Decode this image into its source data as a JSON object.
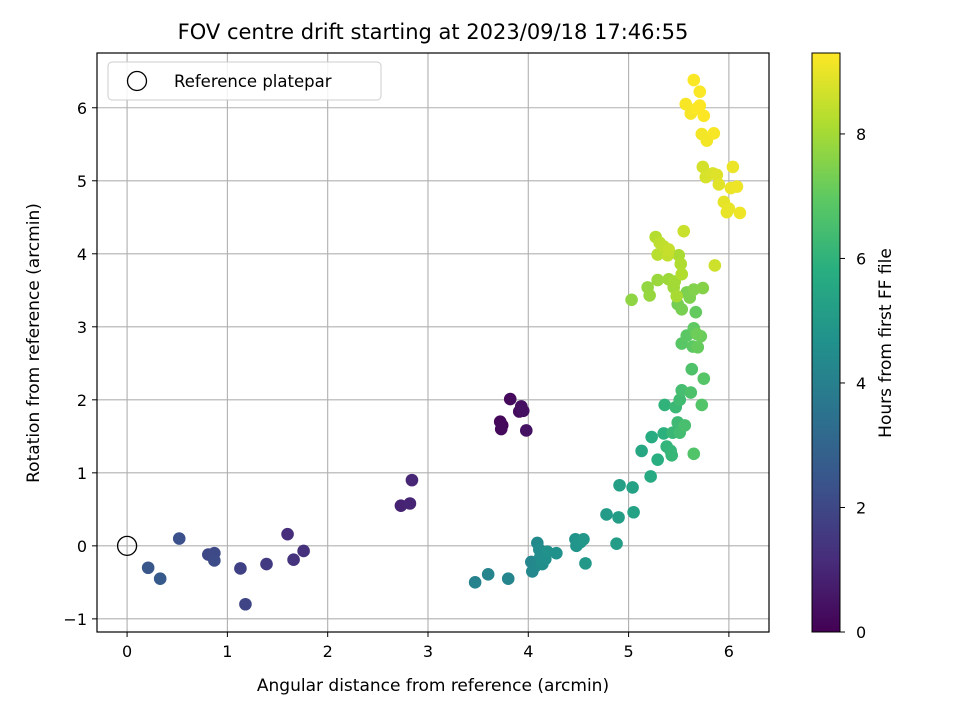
{
  "chart_data": {
    "type": "scatter",
    "title": "FOV centre drift starting at 2023/09/18 17:46:55",
    "xlabel": "Angular distance from reference (arcmin)",
    "ylabel": "Rotation from reference (arcmin)",
    "xlim": [
      -0.3,
      6.4
    ],
    "ylim": [
      -1.18,
      6.75
    ],
    "xticks": [
      0,
      1,
      2,
      3,
      4,
      5,
      6
    ],
    "yticks": [
      -1,
      0,
      1,
      2,
      3,
      4,
      5,
      6
    ],
    "grid": true,
    "legend": {
      "position": "top-left",
      "entries": [
        "Reference platepar"
      ]
    },
    "reference_point": {
      "x": 0,
      "y": 0,
      "marker": "open-circle",
      "label": "Reference platepar"
    },
    "colorbar": {
      "label": "Hours from first FF file",
      "colormap": "viridis",
      "range": [
        0,
        9.3
      ],
      "ticks": [
        0,
        2,
        4,
        6,
        8
      ]
    },
    "points": [
      {
        "x": 3.74,
        "y": 1.65,
        "t": 0.1
      },
      {
        "x": 3.72,
        "y": 1.7,
        "t": 0.15
      },
      {
        "x": 3.73,
        "y": 1.6,
        "t": 0.2
      },
      {
        "x": 3.82,
        "y": 2.01,
        "t": 0.25
      },
      {
        "x": 3.91,
        "y": 1.84,
        "t": 0.3
      },
      {
        "x": 3.93,
        "y": 1.91,
        "t": 0.35
      },
      {
        "x": 3.95,
        "y": 1.85,
        "t": 0.4
      },
      {
        "x": 3.98,
        "y": 1.58,
        "t": 0.45
      },
      {
        "x": 2.73,
        "y": 0.55,
        "t": 0.9
      },
      {
        "x": 2.82,
        "y": 0.58,
        "t": 0.95
      },
      {
        "x": 2.84,
        "y": 0.9,
        "t": 1.0
      },
      {
        "x": 1.6,
        "y": 0.16,
        "t": 1.2
      },
      {
        "x": 1.76,
        "y": -0.07,
        "t": 1.3
      },
      {
        "x": 1.66,
        "y": -0.19,
        "t": 1.35
      },
      {
        "x": 1.39,
        "y": -0.25,
        "t": 1.6
      },
      {
        "x": 1.13,
        "y": -0.31,
        "t": 1.8
      },
      {
        "x": 1.18,
        "y": -0.8,
        "t": 1.9
      },
      {
        "x": 0.81,
        "y": -0.12,
        "t": 2.0
      },
      {
        "x": 0.87,
        "y": -0.1,
        "t": 2.05
      },
      {
        "x": 0.87,
        "y": -0.2,
        "t": 2.1
      },
      {
        "x": 0.52,
        "y": 0.1,
        "t": 2.3
      },
      {
        "x": 0.21,
        "y": -0.3,
        "t": 2.5
      },
      {
        "x": 0.33,
        "y": -0.45,
        "t": 2.6
      },
      {
        "x": 3.47,
        "y": -0.5,
        "t": 4.1
      },
      {
        "x": 3.6,
        "y": -0.39,
        "t": 4.15
      },
      {
        "x": 3.8,
        "y": -0.45,
        "t": 4.2
      },
      {
        "x": 4.03,
        "y": -0.22,
        "t": 4.25
      },
      {
        "x": 4.04,
        "y": -0.35,
        "t": 4.3
      },
      {
        "x": 4.07,
        "y": -0.28,
        "t": 4.35
      },
      {
        "x": 4.09,
        "y": 0.04,
        "t": 4.4
      },
      {
        "x": 4.11,
        "y": -0.05,
        "t": 4.45
      },
      {
        "x": 4.12,
        "y": -0.15,
        "t": 4.5
      },
      {
        "x": 4.14,
        "y": -0.25,
        "t": 4.55
      },
      {
        "x": 4.17,
        "y": -0.18,
        "t": 4.6
      },
      {
        "x": 4.19,
        "y": -0.08,
        "t": 4.65
      },
      {
        "x": 4.28,
        "y": -0.1,
        "t": 4.7
      },
      {
        "x": 4.47,
        "y": 0.09,
        "t": 4.75
      },
      {
        "x": 4.48,
        "y": 0.0,
        "t": 4.8
      },
      {
        "x": 4.52,
        "y": 0.05,
        "t": 4.85
      },
      {
        "x": 4.55,
        "y": 0.09,
        "t": 4.9
      },
      {
        "x": 4.57,
        "y": -0.24,
        "t": 4.95
      },
      {
        "x": 4.78,
        "y": 0.43,
        "t": 5.05
      },
      {
        "x": 4.88,
        "y": 0.03,
        "t": 5.1
      },
      {
        "x": 4.9,
        "y": 0.39,
        "t": 5.15
      },
      {
        "x": 4.91,
        "y": 0.83,
        "t": 5.2
      },
      {
        "x": 5.04,
        "y": 0.8,
        "t": 5.3
      },
      {
        "x": 5.05,
        "y": 0.46,
        "t": 5.35
      },
      {
        "x": 5.13,
        "y": 1.3,
        "t": 5.5
      },
      {
        "x": 5.22,
        "y": 0.95,
        "t": 5.6
      },
      {
        "x": 5.23,
        "y": 1.49,
        "t": 5.7
      },
      {
        "x": 5.29,
        "y": 1.18,
        "t": 5.8
      },
      {
        "x": 5.35,
        "y": 1.54,
        "t": 5.9
      },
      {
        "x": 5.36,
        "y": 1.93,
        "t": 6.0
      },
      {
        "x": 5.38,
        "y": 1.36,
        "t": 6.05
      },
      {
        "x": 5.42,
        "y": 1.3,
        "t": 6.1
      },
      {
        "x": 5.43,
        "y": 1.24,
        "t": 6.15
      },
      {
        "x": 5.44,
        "y": 1.55,
        "t": 6.2
      },
      {
        "x": 5.47,
        "y": 1.9,
        "t": 6.25
      },
      {
        "x": 5.49,
        "y": 1.69,
        "t": 6.3
      },
      {
        "x": 5.51,
        "y": 2.0,
        "t": 6.35
      },
      {
        "x": 5.51,
        "y": 1.55,
        "t": 6.4
      },
      {
        "x": 5.53,
        "y": 2.13,
        "t": 6.45
      },
      {
        "x": 5.56,
        "y": 1.65,
        "t": 6.5
      },
      {
        "x": 5.62,
        "y": 2.1,
        "t": 6.6
      },
      {
        "x": 5.63,
        "y": 2.42,
        "t": 6.65
      },
      {
        "x": 5.65,
        "y": 1.26,
        "t": 6.7
      },
      {
        "x": 5.73,
        "y": 1.93,
        "t": 6.75
      },
      {
        "x": 5.75,
        "y": 2.29,
        "t": 6.8
      },
      {
        "x": 5.53,
        "y": 2.77,
        "t": 6.85
      },
      {
        "x": 5.58,
        "y": 2.88,
        "t": 6.9
      },
      {
        "x": 5.64,
        "y": 2.73,
        "t": 6.95
      },
      {
        "x": 5.65,
        "y": 2.98,
        "t": 7.0
      },
      {
        "x": 5.67,
        "y": 3.2,
        "t": 7.05
      },
      {
        "x": 5.69,
        "y": 2.72,
        "t": 7.1
      },
      {
        "x": 5.72,
        "y": 2.87,
        "t": 7.15
      },
      {
        "x": 5.68,
        "y": 2.9,
        "t": 7.2
      },
      {
        "x": 5.49,
        "y": 3.31,
        "t": 7.3
      },
      {
        "x": 5.53,
        "y": 3.24,
        "t": 7.35
      },
      {
        "x": 5.58,
        "y": 3.47,
        "t": 7.4
      },
      {
        "x": 5.61,
        "y": 3.4,
        "t": 7.45
      },
      {
        "x": 5.65,
        "y": 3.51,
        "t": 7.5
      },
      {
        "x": 5.74,
        "y": 3.53,
        "t": 7.55
      },
      {
        "x": 5.03,
        "y": 3.37,
        "t": 7.7
      },
      {
        "x": 5.19,
        "y": 3.54,
        "t": 7.75
      },
      {
        "x": 5.21,
        "y": 3.43,
        "t": 7.8
      },
      {
        "x": 5.29,
        "y": 3.64,
        "t": 7.85
      },
      {
        "x": 5.4,
        "y": 3.65,
        "t": 7.9
      },
      {
        "x": 5.45,
        "y": 3.54,
        "t": 7.95
      },
      {
        "x": 5.46,
        "y": 3.62,
        "t": 8.0
      },
      {
        "x": 5.48,
        "y": 3.42,
        "t": 8.05
      },
      {
        "x": 5.5,
        "y": 3.98,
        "t": 8.1
      },
      {
        "x": 5.52,
        "y": 3.86,
        "t": 8.15
      },
      {
        "x": 5.53,
        "y": 3.72,
        "t": 8.2
      },
      {
        "x": 5.27,
        "y": 4.23,
        "t": 8.25
      },
      {
        "x": 5.29,
        "y": 3.99,
        "t": 8.3
      },
      {
        "x": 5.31,
        "y": 4.15,
        "t": 8.35
      },
      {
        "x": 5.35,
        "y": 4.1,
        "t": 8.4
      },
      {
        "x": 5.39,
        "y": 3.98,
        "t": 8.45
      },
      {
        "x": 5.4,
        "y": 4.06,
        "t": 8.5
      },
      {
        "x": 5.55,
        "y": 4.31,
        "t": 8.55
      },
      {
        "x": 5.86,
        "y": 3.84,
        "t": 8.6
      },
      {
        "x": 5.74,
        "y": 5.19,
        "t": 8.7
      },
      {
        "x": 5.77,
        "y": 5.05,
        "t": 8.75
      },
      {
        "x": 5.84,
        "y": 5.1,
        "t": 8.8
      },
      {
        "x": 5.88,
        "y": 5.08,
        "t": 8.85
      },
      {
        "x": 5.9,
        "y": 4.95,
        "t": 8.9
      },
      {
        "x": 5.95,
        "y": 4.71,
        "t": 8.95
      },
      {
        "x": 5.98,
        "y": 4.57,
        "t": 9.0
      },
      {
        "x": 6.0,
        "y": 4.62,
        "t": 9.0
      },
      {
        "x": 6.02,
        "y": 4.9,
        "t": 9.05
      },
      {
        "x": 6.04,
        "y": 5.19,
        "t": 9.05
      },
      {
        "x": 6.08,
        "y": 4.92,
        "t": 9.1
      },
      {
        "x": 6.11,
        "y": 4.56,
        "t": 9.1
      },
      {
        "x": 5.73,
        "y": 5.64,
        "t": 9.15
      },
      {
        "x": 5.78,
        "y": 5.55,
        "t": 9.15
      },
      {
        "x": 5.85,
        "y": 5.65,
        "t": 9.2
      },
      {
        "x": 5.57,
        "y": 6.05,
        "t": 9.2
      },
      {
        "x": 5.62,
        "y": 5.92,
        "t": 9.2
      },
      {
        "x": 5.68,
        "y": 5.99,
        "t": 9.25
      },
      {
        "x": 5.65,
        "y": 6.38,
        "t": 9.25
      },
      {
        "x": 5.71,
        "y": 6.22,
        "t": 9.25
      },
      {
        "x": 5.71,
        "y": 6.03,
        "t": 9.3
      },
      {
        "x": 5.75,
        "y": 5.89,
        "t": 9.3
      }
    ]
  }
}
